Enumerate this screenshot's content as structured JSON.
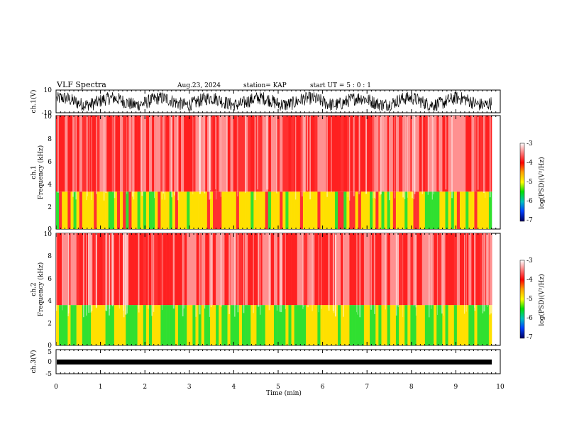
{
  "header": {
    "title": "VLF Spectra",
    "date": "Aug.23, 2024",
    "station": "station= KAP",
    "start": "start UT =  5 : 0  : 1"
  },
  "chart_data": [
    {
      "type": "line",
      "panel": "ch1-waveform",
      "ylabel": "ch.1(V)",
      "ylim": [
        -10,
        10
      ],
      "yticks": [
        "10",
        "-10"
      ],
      "xlim": [
        0,
        10
      ],
      "description_of_values": "dense oscillating voltage trace, roughly between -8 and 8 V, recorded 0 to 9.8 min",
      "series": [
        {
          "values_range": [
            -8,
            8
          ]
        }
      ]
    },
    {
      "type": "heatmap",
      "panel": "ch1-spectrogram",
      "ylabel": "ch.1\nFrequency (kHz)",
      "ylim": [
        0,
        10
      ],
      "yticks": [
        "0",
        "2",
        "4",
        "6",
        "8",
        "10"
      ],
      "xlim": [
        0,
        10
      ],
      "colorbar": {
        "label": "log(PSD)(V²/Hz)",
        "range": [
          -7,
          -3
        ],
        "ticks": [
          "-3",
          "-4",
          "-5",
          "-6",
          "-7"
        ]
      },
      "bands": [
        {
          "from_khz": 0.0,
          "to_khz": 3.3,
          "log_psd": -4.6
        },
        {
          "from_khz": 3.3,
          "to_khz": 10.0,
          "log_psd": -3.7
        }
      ]
    },
    {
      "type": "heatmap",
      "panel": "ch2-spectrogram",
      "ylabel": "ch.2\nFrequency (kHz)",
      "ylim": [
        0,
        10
      ],
      "yticks": [
        "0",
        "2",
        "4",
        "6",
        "8",
        "10"
      ],
      "xlim": [
        0,
        10
      ],
      "colorbar": {
        "label": "log(PSD)(V²/Hz)",
        "range": [
          -7,
          -3
        ],
        "ticks": [
          "-3",
          "-4",
          "-5",
          "-6",
          "-7"
        ]
      },
      "bands": [
        {
          "from_khz": 0.0,
          "to_khz": 3.6,
          "log_psd": -4.8
        },
        {
          "from_khz": 3.6,
          "to_khz": 10.0,
          "log_psd": -3.7
        }
      ]
    },
    {
      "type": "line",
      "panel": "ch3-waveform",
      "ylabel": "ch.3(V)",
      "ylim": [
        -5,
        5
      ],
      "yticks": [
        "5",
        "0",
        "-5"
      ],
      "xlim": [
        0,
        10
      ],
      "xlabel": "Time (min)",
      "xticks": [
        "0",
        "1",
        "2",
        "3",
        "4",
        "5",
        "6",
        "7",
        "8",
        "9",
        "10"
      ],
      "series": [
        {
          "values_range": [
            -0.4,
            0.4
          ]
        }
      ]
    }
  ],
  "colors": {
    "red": "#ff2020",
    "pale_red": "#ffb0b0",
    "yellow": "#ffe000",
    "green": "#30e030",
    "trace": "#000000"
  }
}
